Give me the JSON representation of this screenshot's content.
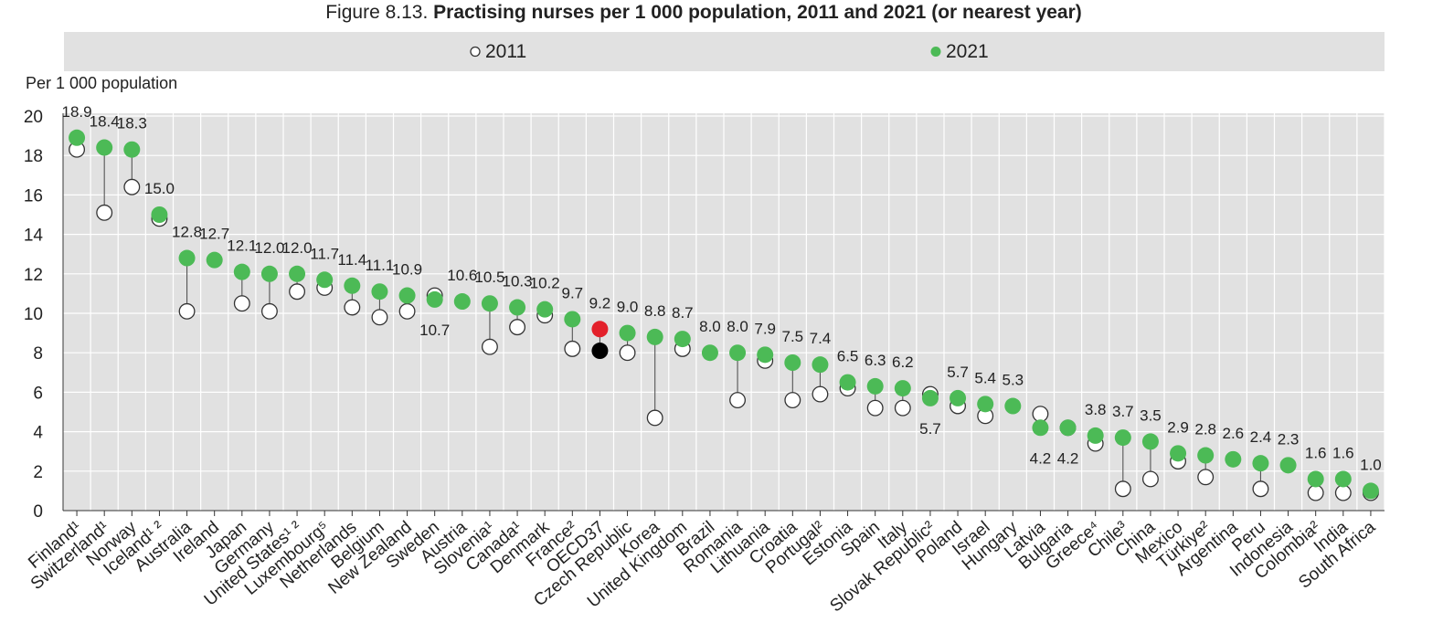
{
  "title": {
    "prefix": "Figure 8.13.",
    "main": "Practising nurses per 1 000 population, 2011 and 2021 (or nearest year)"
  },
  "colors": {
    "v2021": "#4cba56",
    "v2011_fill": "#ffffff",
    "oecd2021": "#e3202a",
    "oecd2011": "#000000",
    "grid": "#ffffff",
    "plot_bg": "#e1e1e1",
    "legend_bg": "#e1e1e1",
    "connector": "#555555"
  },
  "chart_data": {
    "type": "scatter",
    "title": "Practising nurses per 1 000 population, 2011 and 2021 (or nearest year)",
    "ylabel": "Per 1 000 population",
    "ylim": [
      0,
      20
    ],
    "yticks": [
      0,
      2,
      4,
      6,
      8,
      10,
      12,
      14,
      16,
      18,
      20
    ],
    "grid": true,
    "legend": {
      "position": "top",
      "entries": [
        {
          "key": "v2011",
          "label": "2011",
          "marker": "hollow-circle"
        },
        {
          "key": "v2021",
          "label": "2021",
          "marker": "filled-circle"
        }
      ]
    },
    "highlight": "OECD37",
    "categories": [
      "Finland¹",
      "Switzerland¹",
      "Norway",
      "Iceland¹ ²",
      "Australia",
      "Ireland",
      "Japan",
      "Germany",
      "United States¹ ²",
      "Luxembourg⁵",
      "Netherlands",
      "Belgium",
      "New Zealand",
      "Sweden",
      "Austria",
      "Slovenia¹",
      "Canada¹",
      "Denmark",
      "France²",
      "OECD37",
      "Czech Republic",
      "Korea",
      "United Kingdom",
      "Brazil",
      "Romania",
      "Lithuania",
      "Croatia",
      "Portugal²",
      "Estonia",
      "Spain",
      "Italy",
      "Slovak Republic²",
      "Poland",
      "Israel",
      "Hungary",
      "Latvia",
      "Bulgaria",
      "Greece⁴",
      "Chile³",
      "China",
      "Mexico",
      "Türkiye²",
      "Argentina",
      "Peru",
      "Indonesia",
      "Colombia²",
      "India",
      "South Africa"
    ],
    "series": [
      {
        "name": "2011",
        "key": "v2011",
        "values": [
          18.3,
          15.1,
          16.4,
          14.8,
          10.1,
          null,
          10.5,
          10.1,
          11.1,
          11.3,
          10.3,
          9.8,
          10.1,
          10.9,
          null,
          8.3,
          9.3,
          9.9,
          8.2,
          8.1,
          8.0,
          4.7,
          8.2,
          null,
          5.6,
          7.6,
          5.6,
          5.9,
          6.2,
          5.2,
          5.2,
          5.9,
          5.3,
          4.8,
          null,
          4.9,
          4.2,
          3.4,
          1.1,
          1.6,
          2.5,
          1.7,
          null,
          1.1,
          null,
          0.9,
          0.9,
          0.9
        ]
      },
      {
        "name": "2021",
        "key": "v2021",
        "values": [
          18.9,
          18.4,
          18.3,
          15.0,
          12.8,
          12.7,
          12.1,
          12.0,
          12.0,
          11.7,
          11.4,
          11.1,
          10.9,
          10.7,
          10.6,
          10.5,
          10.3,
          10.2,
          9.7,
          9.2,
          9.0,
          8.8,
          8.7,
          8.0,
          8.0,
          7.9,
          7.5,
          7.4,
          6.5,
          6.3,
          6.2,
          5.7,
          5.7,
          5.4,
          5.3,
          4.2,
          4.2,
          3.8,
          3.7,
          3.5,
          2.9,
          2.8,
          2.6,
          2.4,
          2.3,
          1.6,
          1.6,
          1.0
        ]
      }
    ],
    "data_labels": [
      "18.9",
      "18.4",
      "18.3",
      "15.0",
      "12.8",
      "12.7",
      "12.1",
      "12.0",
      "12.0",
      "11.7",
      "11.4",
      "11.1",
      "10.9",
      "10.7",
      "10.6",
      "10.5",
      "10.3",
      "10.2",
      "9.7",
      "9.2",
      "9.0",
      "8.8",
      "8.7",
      "8.0",
      "8.0",
      "7.9",
      "7.5",
      "7.4",
      "6.5",
      "6.3",
      "6.2",
      "5.7",
      "5.7",
      "5.4",
      "5.3",
      "4.2",
      "4.2",
      "3.8",
      "3.7",
      "3.5",
      "2.9",
      "2.8",
      "2.6",
      "2.4",
      "2.3",
      "1.6",
      "1.6",
      "1.0"
    ],
    "labels_below": [
      "Sweden",
      "Slovak Republic²",
      "Latvia",
      "Bulgaria"
    ]
  }
}
